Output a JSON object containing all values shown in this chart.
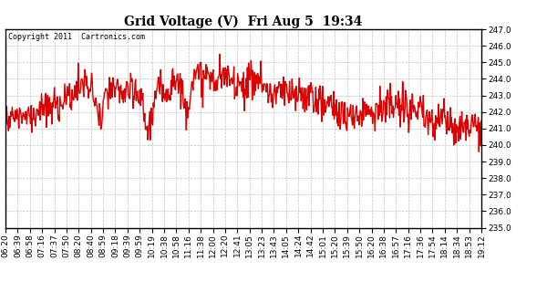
{
  "title": "Grid Voltage (V)  Fri Aug 5  19:34",
  "copyright_text": "Copyright 2011  Cartronics.com",
  "ylim": [
    235.0,
    247.0
  ],
  "yticks": [
    235.0,
    236.0,
    237.0,
    238.0,
    239.0,
    240.0,
    241.0,
    242.0,
    243.0,
    244.0,
    245.0,
    246.0,
    247.0
  ],
  "line_color": "#dd0000",
  "background_color": "#ffffff",
  "plot_bg_color": "#ffffff",
  "grid_color": "#bbbbbb",
  "xtick_labels": [
    "06:20",
    "06:39",
    "06:58",
    "07:16",
    "07:37",
    "07:50",
    "08:20",
    "08:40",
    "08:59",
    "09:18",
    "09:39",
    "09:59",
    "10:19",
    "10:38",
    "10:58",
    "11:16",
    "11:38",
    "12:00",
    "12:20",
    "12:41",
    "13:05",
    "13:23",
    "13:43",
    "14:05",
    "14:24",
    "14:42",
    "15:01",
    "15:20",
    "15:39",
    "15:50",
    "16:20",
    "16:38",
    "16:57",
    "17:16",
    "17:36",
    "17:54",
    "18:14",
    "18:34",
    "18:53",
    "19:12"
  ],
  "line_width": 1.0,
  "title_fontsize": 10,
  "tick_fontsize": 6.5,
  "copyright_fontsize": 6
}
